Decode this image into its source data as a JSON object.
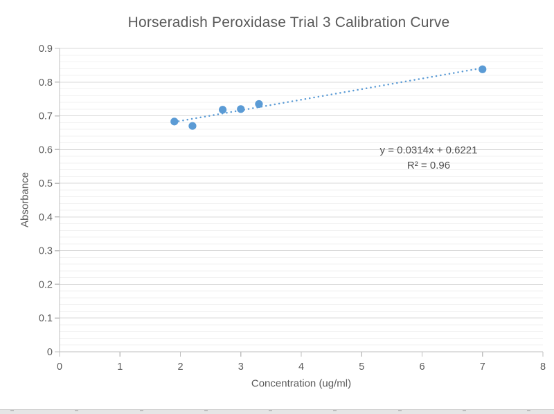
{
  "chart_data": {
    "type": "scatter",
    "title": "Horseradish Peroxidase Trial 3 Calibration Curve",
    "xlabel": "Concentration (ug/ml)",
    "ylabel": "Absorbance",
    "xlim": [
      0,
      8
    ],
    "ylim": [
      0,
      0.9
    ],
    "x_major_unit": 1,
    "y_major_unit": 0.1,
    "y_minor_unit": 0.02,
    "x_tick_labels": [
      "0",
      "1",
      "2",
      "3",
      "4",
      "5",
      "6",
      "7",
      "8"
    ],
    "y_tick_labels": [
      "0",
      "0.1",
      "0.2",
      "0.3",
      "0.4",
      "0.5",
      "0.6",
      "0.7",
      "0.8",
      "0.9"
    ],
    "grid": "horizontal major and minor gridlines only",
    "legend": "none",
    "points": [
      [
        1.9,
        0.683
      ],
      [
        2.2,
        0.67
      ],
      [
        2.7,
        0.718
      ],
      [
        3.0,
        0.72
      ],
      [
        3.3,
        0.735
      ],
      [
        7.0,
        0.838
      ]
    ],
    "trendline": {
      "type": "linear",
      "style": "dotted",
      "slope": 0.0314,
      "intercept": 0.6221,
      "x_start": 1.9,
      "x_end": 7.0
    },
    "annotation": {
      "equation": "y = 0.0314x + 0.6221",
      "r_squared": "R² = 0.96"
    },
    "colors": {
      "marker": "#5B9BD5",
      "trendline": "#5B9BD5",
      "major_gridline": "#D9D9D9",
      "minor_gridline": "#F2F2F2",
      "axis_line": "#BFBFBF",
      "text": "#595959"
    }
  }
}
